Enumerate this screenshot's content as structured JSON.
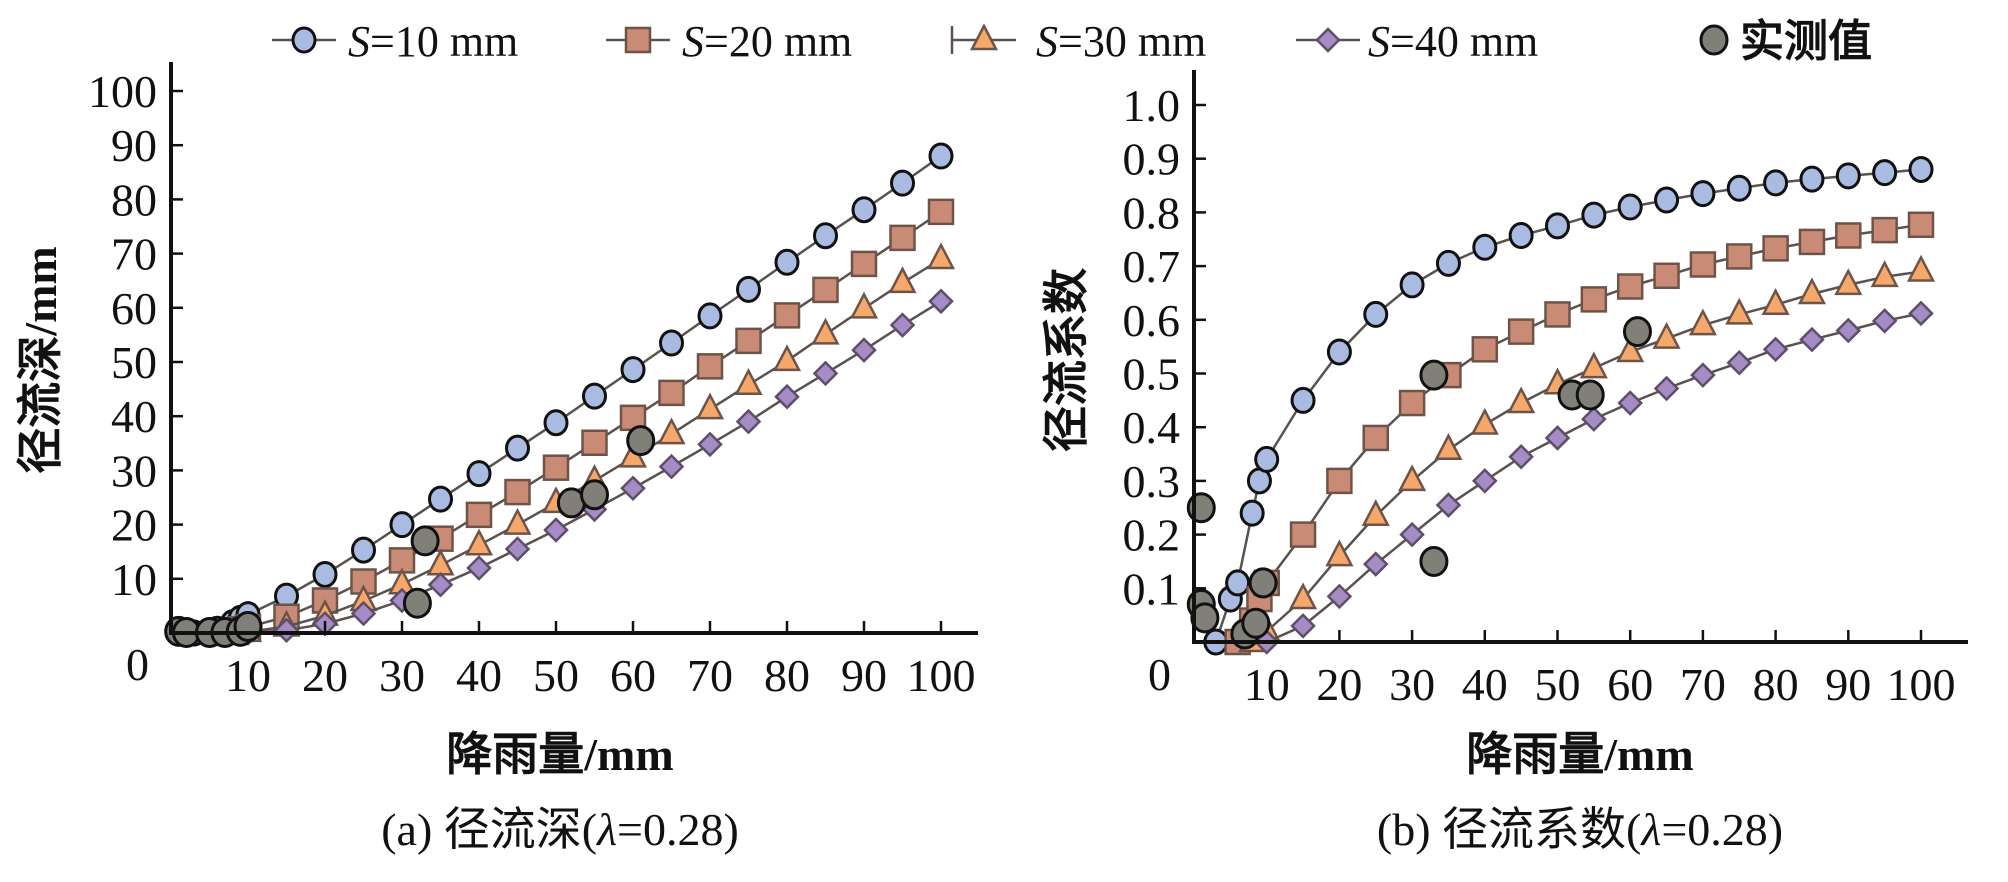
{
  "legend": {
    "items": [
      {
        "prefix": "S",
        "suffix": "=10 mm",
        "marker": "circle",
        "fill": "#a9bbe0"
      },
      {
        "prefix": "S",
        "suffix": "=20 mm",
        "marker": "square",
        "fill": "#c98b76"
      },
      {
        "prefix": "S",
        "suffix": "=30 mm",
        "marker": "triangle",
        "fill": "#f5a86a"
      },
      {
        "prefix": "S",
        "suffix": "=40 mm",
        "marker": "diamond",
        "fill": "#a58cc4"
      },
      {
        "prefix": "",
        "suffix": "实测值",
        "marker": "measured",
        "fill": "#808078"
      }
    ]
  },
  "colors": {
    "line": "#5a524e",
    "circle_stroke": "#111111",
    "square_stroke": "#6e5448",
    "triangle_stroke": "#6e5448",
    "diamond_stroke": "#5e4e6a",
    "measured_fill": "#808078",
    "measured_stroke": "#111111",
    "axis": "#111111"
  },
  "chart_data": [
    {
      "type": "line",
      "panel": "a",
      "caption": "(a) 径流深(λ=0.28)",
      "caption_parts": {
        "pre": "(a) 径流深(",
        "lambda": "λ",
        "post": "=0.28)"
      },
      "xlabel": "降雨量/mm",
      "ylabel": "径流深/mm",
      "xlim": [
        0,
        105
      ],
      "ylim": [
        0,
        105
      ],
      "x_ticks": [
        10,
        20,
        30,
        40,
        50,
        60,
        70,
        80,
        90,
        100
      ],
      "x_tick_labels": [
        "10",
        "20",
        "30",
        "40",
        "50",
        "60",
        "70",
        "80",
        "90",
        "100"
      ],
      "y_ticks": [
        10,
        20,
        30,
        40,
        50,
        60,
        70,
        80,
        90,
        100
      ],
      "y_tick_labels": [
        "10",
        "20",
        "30",
        "40",
        "50",
        "60",
        "70",
        "80",
        "90",
        "100"
      ],
      "origin_label": "0",
      "grid": false,
      "series": [
        {
          "name": "S=10 mm",
          "marker": "circle",
          "x": [
            3,
            5,
            6,
            8,
            9,
            10,
            15,
            20,
            25,
            30,
            35,
            40,
            45,
            50,
            55,
            60,
            65,
            70,
            75,
            80,
            85,
            90,
            95,
            100
          ],
          "y": [
            0,
            0.4,
            0.7,
            1.9,
            2.7,
            3.4,
            6.8,
            10.8,
            15.3,
            20.0,
            24.7,
            29.4,
            34.1,
            38.8,
            43.7,
            48.6,
            53.5,
            58.5,
            63.4,
            68.4,
            73.3,
            78.1,
            83.0,
            88.0
          ]
        },
        {
          "name": "S=20 mm",
          "marker": "square",
          "x": [
            6,
            8,
            9,
            10,
            15,
            20,
            25,
            30,
            35,
            40,
            45,
            50,
            55,
            60,
            65,
            70,
            75,
            80,
            85,
            90,
            95,
            100
          ],
          "y": [
            0,
            0.3,
            0.7,
            1.1,
            3.0,
            6.0,
            9.5,
            13.4,
            17.4,
            21.8,
            26.0,
            30.5,
            35.1,
            39.7,
            44.3,
            49.2,
            53.9,
            58.6,
            63.3,
            68.1,
            72.9,
            77.7
          ]
        },
        {
          "name": "S=30 mm",
          "marker": "triangle",
          "x": [
            8,
            10,
            15,
            20,
            25,
            30,
            35,
            40,
            45,
            50,
            55,
            60,
            65,
            70,
            75,
            80,
            85,
            90,
            95,
            100
          ],
          "y": [
            0,
            0.2,
            1.2,
            3.2,
            5.9,
            9.0,
            12.5,
            16.2,
            20.0,
            24.0,
            28.1,
            32.4,
            36.7,
            41.3,
            45.8,
            50.2,
            55.1,
            59.9,
            64.6,
            69.0
          ]
        },
        {
          "name": "S=40 mm",
          "marker": "diamond",
          "x": [
            10,
            15,
            20,
            25,
            30,
            35,
            40,
            45,
            50,
            55,
            60,
            65,
            70,
            75,
            80,
            85,
            90,
            95,
            100
          ],
          "y": [
            0,
            0.5,
            1.7,
            3.6,
            6.0,
            8.9,
            12.0,
            15.5,
            19.0,
            22.8,
            26.7,
            30.7,
            34.8,
            39.0,
            43.6,
            47.9,
            52.2,
            56.8,
            61.2
          ]
        },
        {
          "name": "实测值",
          "marker": "measured",
          "x": [
            1,
            2,
            5,
            7,
            9,
            10,
            32,
            33,
            52,
            55,
            61
          ],
          "y": [
            0.3,
            0.1,
            0.1,
            0.1,
            0.3,
            1.2,
            5.5,
            17.0,
            24.0,
            25.5,
            35.5
          ]
        }
      ]
    },
    {
      "type": "line",
      "panel": "b",
      "caption": "(b) 径流系数(λ=0.28)",
      "caption_parts": {
        "pre": "(b) 径流系数(",
        "lambda": "λ",
        "post": "=0.28)"
      },
      "xlabel": "降雨量/mm",
      "ylabel": "径流系数",
      "xlim": [
        0,
        105
      ],
      "ylim": [
        0,
        1.05
      ],
      "x_ticks": [
        10,
        20,
        30,
        40,
        50,
        60,
        70,
        80,
        90,
        100
      ],
      "x_tick_labels": [
        "10",
        "20",
        "30",
        "40",
        "50",
        "60",
        "70",
        "80",
        "90",
        "100"
      ],
      "y_ticks": [
        0.1,
        0.2,
        0.3,
        0.4,
        0.5,
        0.6,
        0.7,
        0.8,
        0.9,
        1.0
      ],
      "y_tick_labels": [
        "0.1",
        "0.2",
        "0.3",
        "0.4",
        "0.5",
        "0.6",
        "0.7",
        "0.8",
        "0.9",
        "1.0"
      ],
      "origin_label": "0",
      "grid": false,
      "series": [
        {
          "name": "S=10 mm",
          "marker": "circle",
          "x": [
            3,
            5,
            6,
            8,
            9,
            10,
            15,
            20,
            25,
            30,
            35,
            40,
            45,
            50,
            55,
            60,
            65,
            70,
            75,
            80,
            85,
            90,
            95,
            100
          ],
          "y": [
            0,
            0.08,
            0.11,
            0.24,
            0.3,
            0.34,
            0.45,
            0.54,
            0.61,
            0.665,
            0.705,
            0.735,
            0.757,
            0.775,
            0.795,
            0.81,
            0.823,
            0.835,
            0.845,
            0.855,
            0.862,
            0.868,
            0.874,
            0.88
          ]
        },
        {
          "name": "S=20 mm",
          "marker": "square",
          "x": [
            6,
            8,
            9,
            10,
            15,
            20,
            25,
            30,
            35,
            40,
            45,
            50,
            55,
            60,
            65,
            70,
            75,
            80,
            85,
            90,
            95,
            100
          ],
          "y": [
            0,
            0.04,
            0.08,
            0.11,
            0.2,
            0.3,
            0.38,
            0.445,
            0.497,
            0.545,
            0.578,
            0.61,
            0.638,
            0.662,
            0.682,
            0.703,
            0.718,
            0.733,
            0.745,
            0.757,
            0.767,
            0.777
          ]
        },
        {
          "name": "S=30 mm",
          "marker": "triangle",
          "x": [
            8,
            10,
            15,
            20,
            25,
            30,
            35,
            40,
            45,
            50,
            55,
            60,
            65,
            70,
            75,
            80,
            85,
            90,
            95,
            100
          ],
          "y": [
            0,
            0.02,
            0.08,
            0.16,
            0.235,
            0.3,
            0.358,
            0.405,
            0.445,
            0.48,
            0.51,
            0.54,
            0.565,
            0.59,
            0.61,
            0.628,
            0.648,
            0.665,
            0.68,
            0.69
          ]
        },
        {
          "name": "S=40 mm",
          "marker": "diamond",
          "x": [
            10,
            15,
            20,
            25,
            30,
            35,
            40,
            45,
            50,
            55,
            60,
            65,
            70,
            75,
            80,
            85,
            90,
            95,
            100
          ],
          "y": [
            0,
            0.03,
            0.085,
            0.145,
            0.2,
            0.255,
            0.3,
            0.345,
            0.38,
            0.415,
            0.445,
            0.472,
            0.497,
            0.52,
            0.545,
            0.563,
            0.58,
            0.598,
            0.612
          ]
        },
        {
          "name": "实测值",
          "marker": "measured",
          "x": [
            1,
            1,
            1.5,
            7,
            8.5,
            9.5,
            33,
            33,
            52,
            54.5,
            61
          ],
          "y": [
            0.25,
            0.07,
            0.045,
            0.015,
            0.035,
            0.11,
            0.497,
            0.15,
            0.46,
            0.46,
            0.578
          ]
        }
      ]
    }
  ]
}
